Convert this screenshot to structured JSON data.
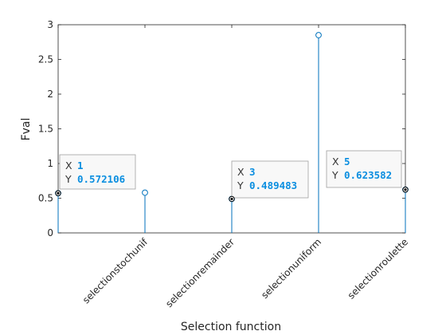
{
  "chart_data": {
    "type": "stem",
    "categories": [
      "",
      "selectionstochunif",
      "selectionremainder",
      "selectionuniform",
      "selectionroulette"
    ],
    "x": [
      1,
      2,
      3,
      4,
      5
    ],
    "values": [
      0.572106,
      0.58,
      0.489483,
      2.85,
      0.623582
    ],
    "xlabel": "Selection function",
    "ylabel": "Fval",
    "ylim": [
      0,
      3
    ],
    "xlim": [
      1,
      5
    ],
    "yticks": [
      "0",
      "0.5",
      "1",
      "1.5",
      "2",
      "2.5",
      "3"
    ],
    "grid": false,
    "series_color": "#0072bd",
    "datatips": [
      {
        "x_key": "X",
        "x_val": "1",
        "y_key": "Y",
        "y_val": "0.572106",
        "point": 1
      },
      {
        "x_key": "X",
        "x_val": "3",
        "y_key": "Y",
        "y_val": "0.489483",
        "point": 3
      },
      {
        "x_key": "X",
        "x_val": "5",
        "y_key": "Y",
        "y_val": "0.623582",
        "point": 5
      }
    ]
  }
}
